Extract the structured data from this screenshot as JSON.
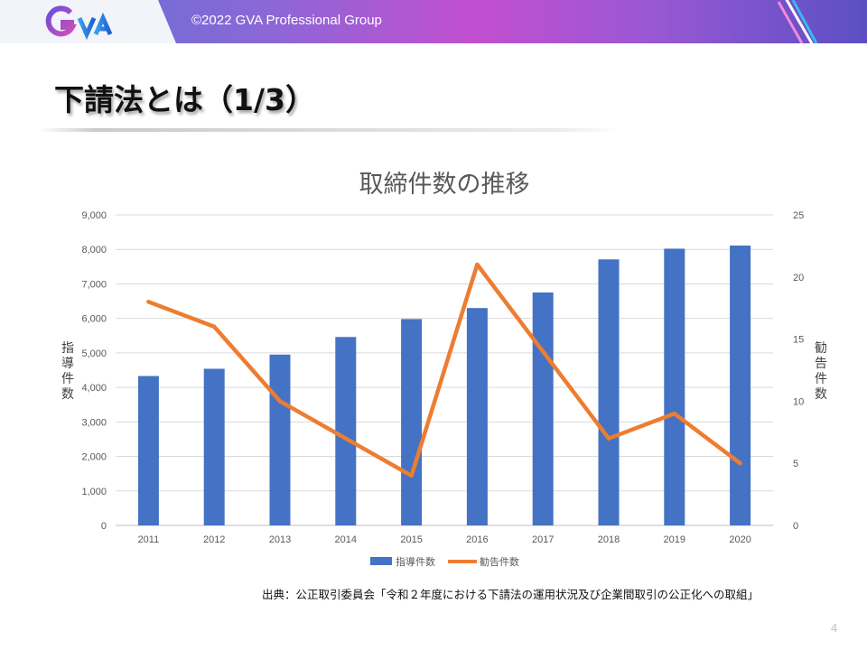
{
  "header": {
    "copyright": "©2022 GVA Professional Group",
    "logo_text": "GVA",
    "colors": {
      "gradient_start": "#5a73d8",
      "gradient_mid": "#c24fd0",
      "gradient_end": "#5b4fc4"
    }
  },
  "slide": {
    "title": "下請法とは（1/3）",
    "source": "出典：公正取引委員会「令和２年度における下請法の運用状況及び企業間取引の公正化への取組」",
    "page_number": "4"
  },
  "chart_data": {
    "type": "bar",
    "title": "取締件数の推移",
    "categories": [
      "2011",
      "2012",
      "2013",
      "2014",
      "2015",
      "2016",
      "2017",
      "2018",
      "2019",
      "2020"
    ],
    "ylabel": "指導件数",
    "y2label": "勧告件数",
    "ylim": [
      0,
      9000
    ],
    "y2lim": [
      0,
      25
    ],
    "yticks": [
      "0",
      "1,000",
      "2,000",
      "3,000",
      "4,000",
      "5,000",
      "6,000",
      "7,000",
      "8,000",
      "9,000"
    ],
    "y2ticks": [
      "0",
      "5",
      "10",
      "15",
      "20",
      "25"
    ],
    "grid": true,
    "legend_position": "bottom",
    "series": [
      {
        "name": "指導件数",
        "type": "bar",
        "axis": "left",
        "color": "#4472c4",
        "values": [
          4330,
          4540,
          4950,
          5460,
          5980,
          6300,
          6750,
          7710,
          8020,
          8110
        ]
      },
      {
        "name": "勧告件数",
        "type": "line",
        "axis": "right",
        "color": "#ed7d31",
        "values": [
          18,
          16,
          10,
          7,
          4,
          21,
          14,
          7,
          9,
          5
        ]
      }
    ]
  }
}
